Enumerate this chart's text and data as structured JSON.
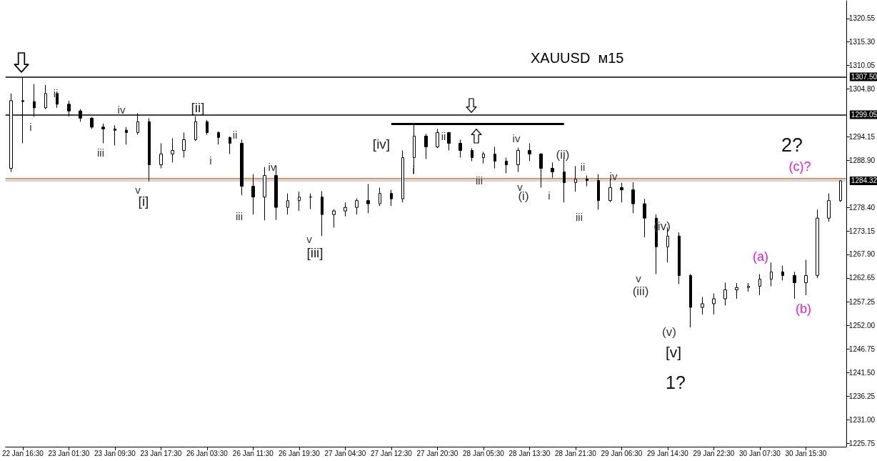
{
  "chart_data": {
    "type": "candlestick",
    "title": "XAUUSD  м15",
    "categories": [
      null,
      "22 Jan 16:30",
      null,
      null,
      null,
      "23 Jan 01:30",
      null,
      null,
      null,
      "23 Jan 09:30",
      null,
      null,
      null,
      "23 Jan 17:30",
      null,
      null,
      null,
      "26 Jan 03:30",
      null,
      null,
      null,
      "26 Jan 11:30",
      null,
      null,
      null,
      "26 Jan 19:30",
      null,
      null,
      null,
      "27 Jan 04:30",
      null,
      null,
      null,
      "27 Jan 12:30",
      null,
      null,
      null,
      "27 Jan 20:30",
      null,
      null,
      null,
      "28 Jan 05:30",
      null,
      null,
      null,
      "28 Jan 13:30",
      null,
      null,
      null,
      "28 Jan 21:30",
      null,
      null,
      null,
      "29 Jan 06:30",
      null,
      null,
      null,
      "29 Jan 14:30",
      null,
      null,
      null,
      "29 Jan 22:30",
      null,
      null,
      null,
      "30 Jan 07:30",
      null,
      null,
      null,
      "30 Jan 15:30",
      null,
      null,
      null
    ],
    "series": [
      {
        "color": "#000000",
        "ohlc": [
          [
            1287.1,
            1303.8,
            1286.3,
            1302.2
          ],
          [
            1302.2,
            1307.4,
            1292.7,
            1302.0
          ],
          [
            1302.0,
            1305.9,
            1298.6,
            1300.6
          ],
          [
            1300.6,
            1305.7,
            1300.3,
            1303.8
          ],
          [
            1303.8,
            1304.1,
            1300.6,
            1301.4
          ],
          [
            1301.4,
            1302.2,
            1298.7,
            1299.9
          ],
          [
            1299.9,
            1300.3,
            1297.5,
            1298.3
          ],
          [
            1298.3,
            1298.5,
            1295.9,
            1296.3
          ],
          [
            1296.3,
            1297.1,
            1292.7,
            1295.9
          ],
          [
            1295.9,
            1296.7,
            1292.2,
            1295.6
          ],
          [
            1295.6,
            1296.3,
            1292.4,
            1295.1
          ],
          [
            1295.1,
            1299.4,
            1294.6,
            1297.5
          ],
          [
            1297.5,
            1298.3,
            1284.2,
            1287.9
          ],
          [
            1287.9,
            1292.7,
            1287.1,
            1290.3
          ],
          [
            1290.3,
            1293.8,
            1288.4,
            1291.1
          ],
          [
            1291.1,
            1295.1,
            1289.5,
            1293.5
          ],
          [
            1293.5,
            1298.7,
            1293.2,
            1297.5
          ],
          [
            1297.5,
            1297.9,
            1294.6,
            1295.1
          ],
          [
            1295.1,
            1295.3,
            1292.4,
            1294.0
          ],
          [
            1294.0,
            1294.2,
            1290.3,
            1292.7
          ],
          [
            1292.7,
            1293.5,
            1281.1,
            1283.1
          ],
          [
            1283.1,
            1285.8,
            1276.8,
            1280.7
          ],
          [
            1280.7,
            1287.4,
            1275.5,
            1285.5
          ],
          [
            1285.5,
            1287.7,
            1275.6,
            1278.4
          ],
          [
            1278.4,
            1281.5,
            1276.8,
            1279.9
          ],
          [
            1279.9,
            1281.9,
            1277.6,
            1280.7
          ],
          [
            1280.7,
            1281.5,
            1278.0,
            1280.7
          ],
          [
            1280.7,
            1282.0,
            1272.0,
            1276.8
          ],
          [
            1276.8,
            1278.0,
            1273.9,
            1277.6
          ],
          [
            1277.6,
            1279.5,
            1276.4,
            1278.4
          ],
          [
            1278.4,
            1280.4,
            1276.8,
            1279.9
          ],
          [
            1279.9,
            1283.6,
            1277.1,
            1279.2
          ],
          [
            1279.2,
            1282.8,
            1278.7,
            1281.5
          ],
          [
            1281.5,
            1282.3,
            1278.7,
            1280.3
          ],
          [
            1280.3,
            1291.1,
            1279.5,
            1289.5
          ],
          [
            1289.5,
            1297.1,
            1285.8,
            1294.3
          ],
          [
            1294.3,
            1294.8,
            1289.2,
            1291.9
          ],
          [
            1291.9,
            1295.9,
            1291.6,
            1295.1
          ],
          [
            1295.1,
            1295.2,
            1291.1,
            1292.7
          ],
          [
            1292.7,
            1293.5,
            1289.5,
            1291.1
          ],
          [
            1291.1,
            1291.6,
            1288.7,
            1289.5
          ],
          [
            1289.5,
            1290.8,
            1288.2,
            1290.3
          ],
          [
            1290.3,
            1291.9,
            1287.1,
            1288.7
          ],
          [
            1288.7,
            1289.5,
            1286.0,
            1287.9
          ],
          [
            1287.9,
            1291.7,
            1286.3,
            1291.1
          ],
          [
            1291.1,
            1292.7,
            1288.7,
            1290.3
          ],
          [
            1290.3,
            1290.5,
            1282.8,
            1287.1
          ],
          [
            1287.1,
            1288.4,
            1285.0,
            1286.3
          ],
          [
            1286.3,
            1289.5,
            1279.5,
            1283.9
          ],
          [
            1283.9,
            1287.6,
            1281.9,
            1284.7
          ],
          [
            1284.7,
            1285.5,
            1283.1,
            1284.4
          ],
          [
            1284.4,
            1285.8,
            1277.9,
            1279.9
          ],
          [
            1279.9,
            1284.7,
            1279.6,
            1282.8
          ],
          [
            1282.8,
            1283.9,
            1279.5,
            1282.3
          ],
          [
            1282.3,
            1284.0,
            1277.1,
            1279.2
          ],
          [
            1279.2,
            1280.3,
            1271.7,
            1276.0
          ],
          [
            1276.0,
            1276.8,
            1263.5,
            1269.6
          ],
          [
            1269.6,
            1273.9,
            1266.1,
            1272.0
          ],
          [
            1272.0,
            1272.8,
            1261.3,
            1263.2
          ],
          [
            1263.2,
            1263.5,
            1251.6,
            1256.1
          ],
          [
            1256.1,
            1258.4,
            1254.5,
            1256.9
          ],
          [
            1256.9,
            1259.2,
            1254.5,
            1258.0
          ],
          [
            1258.0,
            1261.6,
            1256.5,
            1260.0
          ],
          [
            1260.0,
            1261.5,
            1258.0,
            1260.5
          ],
          [
            1260.5,
            1261.5,
            1259.6,
            1260.8
          ],
          [
            1260.8,
            1263.5,
            1258.8,
            1262.4
          ],
          [
            1262.4,
            1266.1,
            1260.8,
            1264.0
          ],
          [
            1264.0,
            1265.4,
            1262.1,
            1263.2
          ],
          [
            1263.2,
            1264.0,
            1258.0,
            1261.6
          ],
          [
            1261.6,
            1266.7,
            1258.8,
            1263.2
          ],
          [
            1263.2,
            1277.9,
            1262.6,
            1276.0
          ],
          [
            1276.0,
            1281.5,
            1275.2,
            1279.9
          ],
          [
            1279.9,
            1284.5,
            1279.6,
            1284.32
          ]
        ]
      },
      {
        "type": "line",
        "color": "#000000",
        "values": [
          null,
          null,
          null,
          null,
          null,
          null,
          null,
          null,
          null,
          null,
          null,
          null,
          null,
          null,
          null,
          null,
          null,
          null,
          null,
          null,
          null,
          null,
          null,
          null,
          null,
          null,
          null,
          null,
          null,
          null,
          null,
          null,
          null,
          1297.0,
          null,
          null,
          null,
          null,
          null,
          null,
          null,
          null,
          null,
          null,
          null,
          null,
          null,
          null,
          1297.0,
          null,
          null,
          null,
          null,
          null,
          null,
          null,
          null,
          null,
          null,
          null,
          null,
          null,
          null,
          null,
          null,
          null,
          null,
          null,
          null,
          null,
          null,
          null,
          null
        ]
      }
    ],
    "ylim": [
      1225.0,
      1324.5
    ],
    "yticks": [
      1320.55,
      {
        "value": 1315.3,
        "label": "1315.30"
      },
      1310.05,
      {
        "value": 1304.8,
        "label": "1304.80"
      },
      1294.15,
      {
        "value": 1288.9,
        "label": "1288.90"
      },
      {
        "value": 1278.4,
        "label": "1278.40"
      },
      1273.15,
      {
        "value": 1267.9,
        "label": "1267.90"
      },
      1262.65,
      1257.25,
      {
        "value": 1252,
        "label": "1252.00"
      },
      1246.75,
      {
        "value": 1241.5,
        "label": "1241.50"
      },
      1236.25,
      {
        "value": 1231,
        "label": "1231.00"
      },
      1225.75
    ],
    "ref_lines": [
      {
        "axis": "y",
        "value": 1307.5,
        "label": "1307.50",
        "color": "#000000"
      },
      {
        "axis": "y",
        "value": 1299.05,
        "label": "1299.05",
        "color": "#000000"
      },
      {
        "axis": "y",
        "value": 1284.8,
        "color": "#e0622a"
      },
      {
        "axis": "y",
        "value": 1284.32,
        "label": "1284.32",
        "color": "#c0c0c0"
      }
    ],
    "annotations": [
      "i",
      "ii",
      "iii",
      "iv",
      "v",
      "[i]",
      "[ii]",
      "i",
      "ii",
      "iii",
      "iv",
      "v",
      "[iii]",
      "[iv]",
      "i",
      "ii",
      "iii",
      "iv",
      "v",
      "(i)",
      "(ii)",
      "i",
      "ii",
      "iii",
      "iv",
      "v",
      "(iii)",
      "(iv)",
      "(v)",
      "[v]",
      "1?",
      "(a)",
      "(b)",
      "(c)?",
      "2?"
    ],
    "grid": false
  }
}
